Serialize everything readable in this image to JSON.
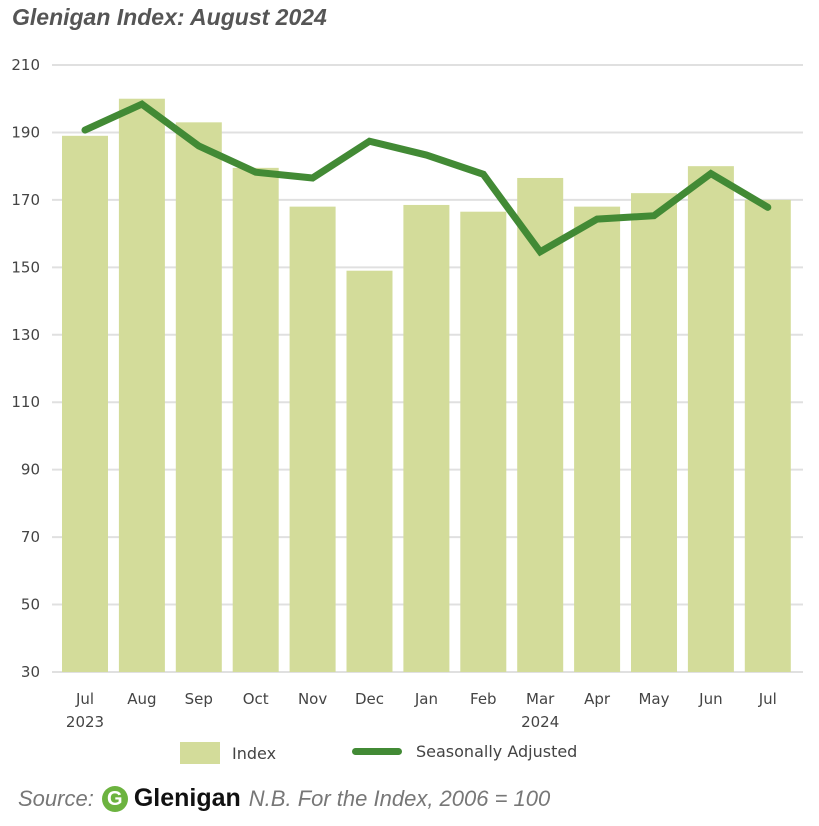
{
  "chart_data": {
    "type": "bar",
    "title": "Glenigan Index: August 2024",
    "categories": [
      "Jul",
      "Aug",
      "Sep",
      "Oct",
      "Nov",
      "Dec",
      "Jan",
      "Feb",
      "Mar",
      "Apr",
      "May",
      "Jun",
      "Jul"
    ],
    "year_labels": {
      "0": "2023",
      "8": "2024"
    },
    "series": [
      {
        "name": "Index",
        "type": "bar",
        "color": "#d3dc9a",
        "values": [
          189,
          200,
          193,
          179.5,
          168,
          149,
          168.5,
          166.5,
          176.5,
          168,
          172,
          180,
          170
        ]
      },
      {
        "name": "Seasonally Adjusted",
        "type": "line",
        "color": "#428a35",
        "values": [
          190.7,
          198.4,
          186,
          178.2,
          176.5,
          187.4,
          183.3,
          177.6,
          154.6,
          164.3,
          165.3,
          177.8,
          167.8
        ]
      }
    ],
    "ylim": [
      30,
      210
    ],
    "yticks": [
      30,
      50,
      70,
      90,
      110,
      130,
      150,
      170,
      190,
      210
    ],
    "grid": true,
    "legend": "bottom"
  },
  "footer": {
    "source_label": "Source:",
    "logo_letter": "G",
    "logo_text": "Glenigan",
    "note": "N.B. For the Index, 2006 = 100"
  }
}
